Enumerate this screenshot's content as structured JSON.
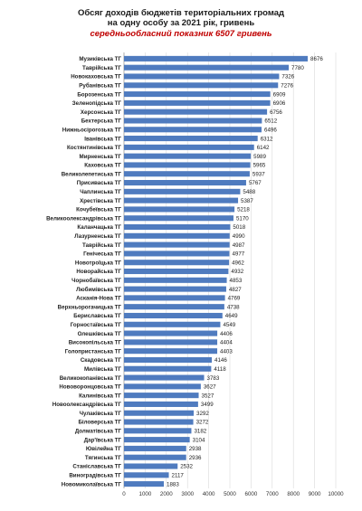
{
  "chart_data": {
    "type": "bar",
    "orientation": "horizontal",
    "title_line1": "Обсяг доходів бюджетів територіальних громад",
    "title_line2": "на одну особу за 2021 рік, гривень",
    "subtitle": "середньообласний показник 6507 гривень",
    "xlim": [
      0,
      10000
    ],
    "xticks": [
      "0",
      "1000",
      "2000",
      "3000",
      "4000",
      "5000",
      "6000",
      "7000",
      "8000",
      "9000",
      "10000"
    ],
    "grid": true,
    "bar_color": "#4f7bbf",
    "categories": [
      "Музиківська ТГ",
      "Таврійська ТГ",
      "Новокаховська ТГ",
      "Рубанівська ТГ",
      "Борозенська ТГ",
      "Зеленопідська ТГ",
      "Херсонська ТГ",
      "Бехтерська ТГ",
      "Нижньосірогозька ТГ",
      "Іванівська ТГ",
      "Костянтинівська ТГ",
      "Мирненська ТГ",
      "Каховська ТГ",
      "Великолепетиська ТГ",
      "Присиваська ТГ",
      "Чаплинська ТГ",
      "Хрестівська ТГ",
      "Кочубеївська ТГ",
      "Великоолександрівська ТГ",
      "Каланчацька ТГ",
      "Лазурненська ТГ",
      "Таврійська ТГ",
      "Генічеська ТГ",
      "Новотроїцька ТГ",
      "Новорайська ТГ",
      "Чорнобаївська ТГ",
      "Любимівська ТГ",
      "Асканія-Нова ТГ",
      "Верхньорогачицька ТГ",
      "Бериславська ТГ",
      "Горностаївська ТГ",
      "Олешківська ТГ",
      "Високопільська ТГ",
      "Голопристанська ТГ",
      "Скадовська ТГ",
      "Милівська ТГ",
      "Великокопанівська ТГ",
      "Нововоронцовська ТГ",
      "Калинівська ТГ",
      "Новоолександрівська ТГ",
      "Чулаківська ТГ",
      "Біловерська ТГ",
      "Долматівська ТГ",
      "Дар'ївська ТГ",
      "Ювілейна ТГ",
      "Тягинська ТГ",
      "Станіславська ТГ",
      "Виноградівська ТГ",
      "Новомиколаївська ТГ"
    ],
    "values": [
      8676,
      7780,
      7326,
      7276,
      6909,
      6906,
      6756,
      6512,
      6496,
      6312,
      6142,
      5989,
      5965,
      5937,
      5767,
      5488,
      5387,
      5218,
      5170,
      5018,
      4990,
      4987,
      4977,
      4962,
      4932,
      4853,
      4827,
      4769,
      4738,
      4649,
      4549,
      4406,
      4404,
      4403,
      4146,
      4118,
      3783,
      3627,
      3527,
      3499,
      3292,
      3272,
      3182,
      3104,
      2938,
      2936,
      2532,
      2117,
      1883
    ]
  }
}
